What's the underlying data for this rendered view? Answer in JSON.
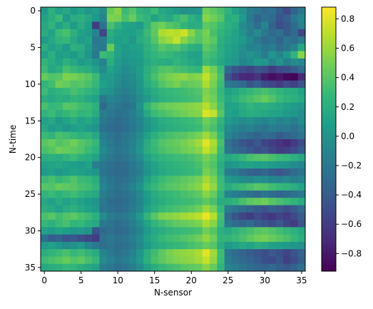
{
  "chart_data": {
    "type": "heatmap",
    "title": "",
    "xlabel": "N-sensor",
    "ylabel": "N-time",
    "x_ticks": [
      0,
      5,
      10,
      15,
      20,
      25,
      30,
      35
    ],
    "y_ticks": [
      0,
      5,
      10,
      15,
      20,
      25,
      30,
      35
    ],
    "colorbar_ticks": [
      0.8,
      0.6,
      0.4,
      0.2,
      0.0,
      -0.2,
      -0.4,
      -0.6,
      -0.8
    ],
    "colorbar_tick_labels": [
      "0.8",
      "0.6",
      "0.4",
      "0.2",
      "0.0",
      "−0.2",
      "−0.4",
      "−0.6",
      "−0.8"
    ],
    "vmin": -0.92,
    "vmax": 0.88,
    "colormap": "viridis",
    "n_rows": 36,
    "n_cols": 36,
    "matrix": [
      [
        0.05,
        0.22,
        0.1,
        0.15,
        0.05,
        0.12,
        0.02,
        0.08,
        -0.05,
        0.45,
        0.55,
        0.3,
        0.38,
        0.25,
        0.2,
        0.3,
        0.15,
        0.12,
        0.05,
        -0.02,
        0.0,
        0.02,
        0.48,
        0.42,
        0.35,
        0.25,
        0.1,
        0.0,
        -0.15,
        -0.22,
        -0.3,
        -0.25,
        -0.4,
        -0.52,
        -0.35,
        -0.2
      ],
      [
        0.12,
        0.2,
        0.3,
        0.05,
        0.18,
        0.22,
        0.15,
        0.02,
        -0.1,
        0.52,
        0.5,
        0.35,
        0.45,
        0.3,
        0.25,
        0.12,
        0.2,
        0.15,
        0.28,
        0.35,
        0.22,
        0.15,
        0.55,
        0.48,
        0.4,
        0.18,
        0.22,
        0.05,
        -0.18,
        -0.35,
        -0.25,
        -0.3,
        -0.45,
        -0.38,
        -0.2,
        -0.1
      ],
      [
        0.15,
        0.25,
        0.1,
        0.2,
        0.05,
        0.18,
        0.08,
        -0.6,
        -0.25,
        0.35,
        0.22,
        0.12,
        0.1,
        0.05,
        0.25,
        0.42,
        0.48,
        0.4,
        0.35,
        0.25,
        0.18,
        0.2,
        0.42,
        0.38,
        0.3,
        0.22,
        0.15,
        -0.05,
        -0.15,
        -0.28,
        -0.1,
        -0.35,
        -0.5,
        -0.42,
        -0.3,
        -0.12
      ],
      [
        0.18,
        0.12,
        0.3,
        0.35,
        0.22,
        0.1,
        0.05,
        -0.1,
        -0.55,
        0.2,
        0.12,
        0.1,
        0.08,
        0.15,
        0.3,
        0.42,
        0.65,
        0.7,
        0.68,
        0.75,
        0.55,
        0.4,
        0.5,
        0.35,
        0.25,
        0.18,
        0.12,
        0.0,
        -0.15,
        -0.05,
        -0.2,
        -0.3,
        -0.25,
        -0.4,
        -0.3,
        -0.55
      ],
      [
        0.05,
        0.15,
        0.25,
        0.28,
        0.15,
        0.05,
        0.12,
        -0.2,
        -0.15,
        0.15,
        0.08,
        0.12,
        0.02,
        0.18,
        0.25,
        0.38,
        0.55,
        0.62,
        0.72,
        0.55,
        0.45,
        0.38,
        0.48,
        0.42,
        0.22,
        0.15,
        0.1,
        0.05,
        -0.08,
        -0.18,
        -0.3,
        -0.25,
        -0.35,
        -0.2,
        -0.28,
        -0.15
      ],
      [
        0.2,
        0.1,
        0.15,
        0.05,
        0.22,
        0.18,
        0.05,
        -0.15,
        -0.2,
        0.45,
        0.12,
        0.05,
        0.08,
        0.1,
        0.22,
        0.3,
        0.4,
        0.35,
        0.38,
        0.3,
        0.22,
        0.18,
        0.42,
        0.35,
        0.2,
        0.12,
        0.08,
        -0.02,
        -0.12,
        -0.1,
        -0.2,
        -0.15,
        -0.28,
        -0.22,
        -0.1,
        0.15
      ],
      [
        0.1,
        0.22,
        0.08,
        0.12,
        0.05,
        0.15,
        0.02,
        -0.2,
        0.3,
        0.25,
        0.1,
        0.02,
        0.05,
        0.08,
        0.2,
        0.25,
        0.3,
        0.28,
        0.22,
        0.18,
        0.12,
        0.1,
        0.35,
        0.3,
        0.18,
        0.1,
        0.05,
        -0.05,
        0.0,
        -0.05,
        -0.15,
        0.02,
        -0.1,
        0.05,
        0.25,
        0.55
      ],
      [
        0.25,
        0.18,
        0.12,
        0.22,
        0.15,
        0.05,
        0.1,
        0.0,
        -0.1,
        0.2,
        0.05,
        0.0,
        0.02,
        0.05,
        0.15,
        0.22,
        0.2,
        0.18,
        0.25,
        0.2,
        0.15,
        0.12,
        0.3,
        0.25,
        0.15,
        0.08,
        0.02,
        -0.1,
        -0.05,
        0.05,
        0.02,
        -0.12,
        0.0,
        -0.15,
        -0.05,
        -0.1
      ],
      [
        0.3,
        0.15,
        0.2,
        0.35,
        0.28,
        0.22,
        0.18,
        0.1,
        -0.05,
        0.1,
        0.02,
        -0.05,
        0.0,
        0.08,
        0.2,
        0.3,
        0.38,
        0.4,
        0.35,
        0.32,
        0.28,
        0.25,
        0.6,
        0.48,
        0.3,
        -0.3,
        -0.45,
        -0.5,
        -0.55,
        -0.45,
        -0.5,
        -0.6,
        -0.52,
        -0.48,
        -0.4,
        -0.3
      ],
      [
        0.45,
        0.38,
        0.4,
        0.52,
        0.5,
        0.45,
        0.4,
        0.3,
        0.05,
        0.05,
        -0.02,
        -0.08,
        -0.05,
        0.05,
        0.22,
        0.35,
        0.45,
        0.5,
        0.55,
        0.58,
        0.52,
        0.55,
        0.72,
        0.55,
        0.35,
        -0.45,
        -0.6,
        -0.7,
        -0.72,
        -0.65,
        -0.78,
        -0.85,
        -0.8,
        -0.88,
        -0.9,
        -0.7
      ],
      [
        0.25,
        0.32,
        0.48,
        0.45,
        0.38,
        0.4,
        0.35,
        0.28,
        0.1,
        0.02,
        -0.05,
        -0.1,
        -0.08,
        0.02,
        0.18,
        0.28,
        0.38,
        0.45,
        0.5,
        0.42,
        0.45,
        0.48,
        0.65,
        0.5,
        0.3,
        -0.2,
        -0.25,
        -0.3,
        -0.45,
        -0.38,
        -0.5,
        -0.55,
        -0.6,
        -0.52,
        -0.58,
        -0.45
      ],
      [
        0.3,
        0.2,
        0.25,
        0.28,
        0.35,
        0.3,
        0.25,
        0.2,
        0.02,
        0.0,
        -0.1,
        -0.15,
        -0.1,
        0.0,
        0.12,
        0.18,
        0.25,
        0.28,
        0.3,
        0.32,
        0.35,
        0.38,
        0.52,
        0.45,
        0.28,
        0.1,
        0.15,
        0.22,
        0.28,
        0.32,
        0.35,
        0.3,
        0.25,
        0.2,
        0.18,
        0.1
      ],
      [
        0.2,
        0.15,
        0.22,
        0.18,
        0.25,
        0.22,
        0.15,
        0.1,
        -0.2,
        -0.1,
        -0.15,
        -0.2,
        -0.15,
        -0.05,
        0.05,
        0.15,
        0.22,
        0.25,
        0.28,
        0.3,
        0.32,
        0.35,
        0.55,
        0.48,
        0.3,
        0.15,
        0.22,
        0.3,
        0.35,
        0.4,
        0.45,
        0.38,
        0.3,
        0.25,
        0.22,
        0.15
      ],
      [
        0.35,
        0.28,
        0.3,
        0.4,
        0.38,
        0.32,
        0.3,
        0.22,
        -0.3,
        -0.15,
        -0.2,
        -0.25,
        -0.2,
        0.0,
        0.25,
        0.38,
        0.45,
        0.48,
        0.5,
        0.52,
        0.55,
        0.58,
        0.68,
        0.55,
        0.35,
        0.1,
        0.12,
        0.18,
        0.25,
        0.2,
        0.22,
        0.18,
        0.15,
        0.1,
        0.05,
        0.02
      ],
      [
        0.25,
        0.3,
        0.22,
        0.28,
        0.32,
        0.25,
        0.28,
        0.18,
        -0.15,
        -0.2,
        -0.25,
        -0.22,
        -0.15,
        -0.05,
        0.15,
        0.3,
        0.35,
        0.4,
        0.45,
        0.48,
        0.52,
        0.55,
        0.78,
        0.72,
        0.4,
        0.12,
        0.08,
        0.15,
        0.2,
        0.18,
        0.15,
        0.12,
        0.1,
        0.05,
        0.02,
        -0.05
      ],
      [
        0.1,
        0.15,
        0.05,
        0.12,
        0.18,
        0.1,
        0.15,
        0.08,
        -0.2,
        -0.25,
        -0.3,
        -0.25,
        -0.18,
        -0.1,
        0.02,
        0.12,
        0.18,
        0.22,
        0.25,
        0.28,
        0.3,
        0.35,
        0.48,
        0.4,
        0.25,
        0.05,
        0.0,
        -0.05,
        -0.02,
        -0.08,
        -0.1,
        -0.05,
        -0.12,
        -0.08,
        -0.15,
        -0.05
      ],
      [
        0.15,
        0.05,
        0.1,
        0.02,
        0.08,
        0.12,
        0.05,
        0.0,
        -0.25,
        -0.28,
        -0.32,
        -0.28,
        -0.2,
        -0.12,
        0.0,
        0.1,
        0.15,
        0.2,
        0.22,
        0.25,
        0.28,
        0.3,
        0.42,
        0.35,
        0.2,
        -0.05,
        -0.1,
        -0.15,
        -0.12,
        -0.18,
        -0.22,
        -0.15,
        -0.2,
        -0.18,
        -0.25,
        -0.15
      ],
      [
        0.3,
        0.25,
        0.35,
        0.32,
        0.28,
        0.22,
        0.25,
        0.15,
        -0.15,
        -0.22,
        -0.28,
        -0.22,
        -0.15,
        -0.05,
        0.1,
        0.22,
        0.3,
        0.35,
        0.38,
        0.4,
        0.45,
        0.5,
        0.62,
        0.5,
        0.28,
        -0.1,
        -0.2,
        -0.25,
        -0.3,
        -0.35,
        -0.28,
        -0.32,
        -0.4,
        -0.35,
        -0.3,
        -0.22
      ],
      [
        0.4,
        0.45,
        0.38,
        0.42,
        0.48,
        0.4,
        0.35,
        0.28,
        -0.1,
        -0.18,
        -0.25,
        -0.2,
        -0.12,
        0.0,
        0.18,
        0.3,
        0.38,
        0.42,
        0.45,
        0.5,
        0.55,
        0.62,
        0.8,
        0.65,
        0.35,
        -0.25,
        -0.35,
        -0.45,
        -0.5,
        -0.42,
        -0.55,
        -0.6,
        -0.65,
        -0.7,
        -0.6,
        -0.5
      ],
      [
        0.35,
        0.4,
        0.48,
        0.45,
        0.42,
        0.38,
        0.3,
        0.22,
        -0.05,
        -0.15,
        -0.22,
        -0.18,
        -0.1,
        0.02,
        0.2,
        0.28,
        0.35,
        0.4,
        0.42,
        0.48,
        0.5,
        0.55,
        0.72,
        0.6,
        0.3,
        -0.2,
        -0.3,
        -0.35,
        -0.42,
        -0.5,
        -0.45,
        -0.55,
        -0.6,
        -0.58,
        -0.52,
        -0.4
      ],
      [
        0.2,
        0.22,
        0.18,
        0.25,
        0.3,
        0.22,
        0.18,
        0.12,
        -0.12,
        -0.2,
        -0.25,
        -0.22,
        -0.15,
        -0.05,
        0.1,
        0.2,
        0.25,
        0.28,
        0.3,
        0.32,
        0.35,
        0.4,
        0.5,
        0.42,
        0.25,
        0.15,
        0.2,
        0.28,
        0.35,
        0.38,
        0.4,
        0.35,
        0.3,
        0.28,
        0.22,
        0.15
      ],
      [
        0.1,
        0.12,
        0.15,
        0.1,
        0.08,
        0.05,
        0.12,
        -0.15,
        -0.2,
        -0.25,
        -0.3,
        -0.28,
        -0.2,
        -0.12,
        0.02,
        0.12,
        0.18,
        0.22,
        0.25,
        0.28,
        0.3,
        0.35,
        0.45,
        0.38,
        0.2,
        0.0,
        0.05,
        0.1,
        0.12,
        0.08,
        0.1,
        0.05,
        0.02,
        0.0,
        -0.05,
        -0.1
      ],
      [
        0.05,
        0.1,
        0.02,
        0.08,
        0.12,
        0.1,
        0.05,
        0.02,
        -0.22,
        -0.28,
        -0.32,
        -0.3,
        -0.22,
        -0.15,
        0.0,
        0.1,
        0.15,
        0.2,
        0.22,
        0.25,
        0.28,
        0.32,
        0.5,
        0.42,
        0.22,
        -0.15,
        -0.2,
        -0.3,
        -0.35,
        -0.38,
        -0.32,
        -0.4,
        -0.45,
        -0.38,
        -0.3,
        -0.22
      ],
      [
        0.3,
        0.35,
        0.28,
        0.32,
        0.38,
        0.3,
        0.28,
        0.2,
        -0.15,
        -0.22,
        -0.28,
        -0.25,
        -0.18,
        -0.08,
        0.1,
        0.22,
        0.3,
        0.35,
        0.38,
        0.42,
        0.45,
        0.5,
        0.62,
        0.52,
        0.3,
        0.05,
        0.0,
        -0.05,
        -0.08,
        -0.02,
        -0.05,
        -0.1,
        -0.12,
        -0.08,
        -0.15,
        -0.1
      ],
      [
        0.4,
        0.38,
        0.45,
        0.42,
        0.4,
        0.35,
        0.32,
        0.25,
        -0.1,
        -0.18,
        -0.25,
        -0.2,
        -0.12,
        0.0,
        0.18,
        0.28,
        0.35,
        0.4,
        0.42,
        0.45,
        0.5,
        0.55,
        0.7,
        0.58,
        0.32,
        0.18,
        0.25,
        0.3,
        0.35,
        0.4,
        0.38,
        0.32,
        0.28,
        0.25,
        0.2,
        0.12
      ],
      [
        0.25,
        0.3,
        0.22,
        0.28,
        0.32,
        0.25,
        0.2,
        0.15,
        -0.15,
        -0.22,
        -0.28,
        -0.25,
        -0.18,
        -0.08,
        0.08,
        0.18,
        0.25,
        0.28,
        0.3,
        0.35,
        0.38,
        0.42,
        0.55,
        0.45,
        0.25,
        -0.1,
        -0.15,
        -0.2,
        -0.25,
        -0.3,
        -0.22,
        -0.28,
        -0.35,
        -0.3,
        -0.25,
        -0.2
      ],
      [
        0.15,
        0.1,
        0.18,
        0.12,
        0.15,
        0.1,
        0.05,
        0.0,
        -0.2,
        -0.28,
        -0.32,
        -0.28,
        -0.2,
        -0.1,
        0.05,
        0.15,
        0.2,
        0.25,
        0.28,
        0.3,
        0.32,
        0.35,
        0.42,
        0.35,
        0.18,
        0.2,
        0.25,
        0.35,
        0.42,
        0.45,
        0.48,
        0.4,
        0.35,
        0.3,
        0.25,
        0.18
      ],
      [
        0.2,
        0.15,
        0.1,
        0.18,
        0.22,
        0.15,
        0.1,
        0.05,
        -0.22,
        -0.25,
        -0.3,
        -0.25,
        -0.18,
        -0.08,
        0.1,
        0.2,
        0.28,
        0.32,
        0.35,
        0.38,
        0.42,
        0.48,
        0.6,
        0.5,
        0.28,
        -0.15,
        -0.22,
        -0.3,
        -0.35,
        -0.4,
        -0.45,
        -0.38,
        -0.42,
        -0.48,
        -0.4,
        -0.3
      ],
      [
        0.35,
        0.4,
        0.32,
        0.38,
        0.42,
        0.35,
        0.3,
        0.22,
        -0.05,
        -0.15,
        -0.22,
        -0.18,
        -0.1,
        0.05,
        0.25,
        0.4,
        0.52,
        0.55,
        0.58,
        0.62,
        0.65,
        0.7,
        0.82,
        0.68,
        0.35,
        -0.3,
        -0.45,
        -0.55,
        -0.6,
        -0.5,
        -0.58,
        -0.62,
        -0.55,
        -0.6,
        -0.52,
        -0.4
      ],
      [
        0.28,
        0.22,
        0.3,
        0.35,
        0.25,
        0.28,
        0.2,
        0.15,
        -0.18,
        -0.22,
        -0.28,
        -0.22,
        -0.15,
        -0.05,
        0.12,
        0.25,
        0.32,
        0.38,
        0.42,
        0.45,
        0.48,
        0.52,
        0.65,
        0.55,
        0.3,
        -0.2,
        -0.3,
        -0.35,
        -0.28,
        -0.4,
        -0.45,
        -0.5,
        -0.42,
        -0.55,
        -0.6,
        -0.45
      ],
      [
        0.1,
        0.05,
        0.12,
        0.08,
        0.02,
        0.05,
        0.0,
        -0.45,
        -0.3,
        -0.25,
        -0.32,
        -0.28,
        -0.2,
        -0.1,
        0.05,
        0.15,
        0.2,
        0.25,
        0.28,
        0.3,
        0.32,
        0.35,
        0.48,
        0.4,
        0.22,
        0.15,
        0.25,
        0.3,
        0.35,
        0.4,
        0.42,
        0.38,
        0.32,
        0.28,
        0.22,
        0.15
      ],
      [
        -0.25,
        -0.4,
        -0.35,
        -0.45,
        -0.42,
        -0.5,
        -0.55,
        -0.6,
        -0.25,
        -0.2,
        -0.25,
        -0.22,
        -0.15,
        -0.05,
        0.1,
        0.2,
        0.28,
        0.32,
        0.35,
        0.38,
        0.42,
        0.48,
        0.58,
        0.48,
        0.25,
        0.25,
        0.3,
        0.35,
        0.42,
        0.48,
        0.5,
        0.45,
        0.4,
        0.35,
        0.28,
        0.2
      ],
      [
        0.05,
        0.1,
        0.02,
        -0.05,
        0.0,
        0.05,
        -0.1,
        -0.2,
        -0.28,
        -0.22,
        -0.28,
        -0.25,
        -0.18,
        -0.08,
        0.05,
        0.15,
        0.2,
        0.25,
        0.28,
        0.3,
        0.35,
        0.38,
        0.45,
        0.4,
        0.2,
        0.05,
        0.1,
        0.15,
        0.12,
        0.18,
        0.15,
        0.1,
        0.08,
        0.05,
        0.02,
        -0.02
      ],
      [
        0.2,
        0.25,
        0.3,
        0.35,
        0.28,
        0.32,
        0.25,
        0.18,
        -0.1,
        -0.18,
        -0.25,
        -0.2,
        -0.12,
        0.02,
        0.2,
        0.32,
        0.42,
        0.5,
        0.55,
        0.58,
        0.6,
        0.65,
        0.8,
        0.62,
        0.32,
        -0.2,
        -0.28,
        -0.35,
        -0.4,
        -0.45,
        -0.5,
        -0.42,
        -0.48,
        -0.55,
        -0.45,
        -0.35
      ],
      [
        0.3,
        0.35,
        0.4,
        0.45,
        0.38,
        0.42,
        0.35,
        0.28,
        -0.05,
        -0.12,
        -0.2,
        -0.15,
        -0.08,
        0.05,
        0.22,
        0.35,
        0.42,
        0.48,
        0.52,
        0.55,
        0.58,
        0.62,
        0.72,
        0.58,
        0.3,
        -0.15,
        -0.25,
        -0.3,
        -0.35,
        -0.4,
        -0.48,
        -0.52,
        -0.45,
        -0.58,
        -0.5,
        -0.38
      ],
      [
        0.15,
        0.2,
        0.22,
        0.28,
        0.25,
        0.2,
        0.15,
        0.1,
        -0.15,
        -0.2,
        -0.28,
        -0.22,
        -0.15,
        -0.05,
        0.1,
        0.2,
        0.28,
        0.32,
        0.35,
        0.4,
        0.42,
        0.45,
        0.55,
        0.45,
        0.25,
        -0.1,
        -0.15,
        -0.22,
        -0.28,
        -0.32,
        -0.35,
        -0.3,
        -0.38,
        -0.42,
        -0.35,
        -0.25
      ]
    ]
  }
}
